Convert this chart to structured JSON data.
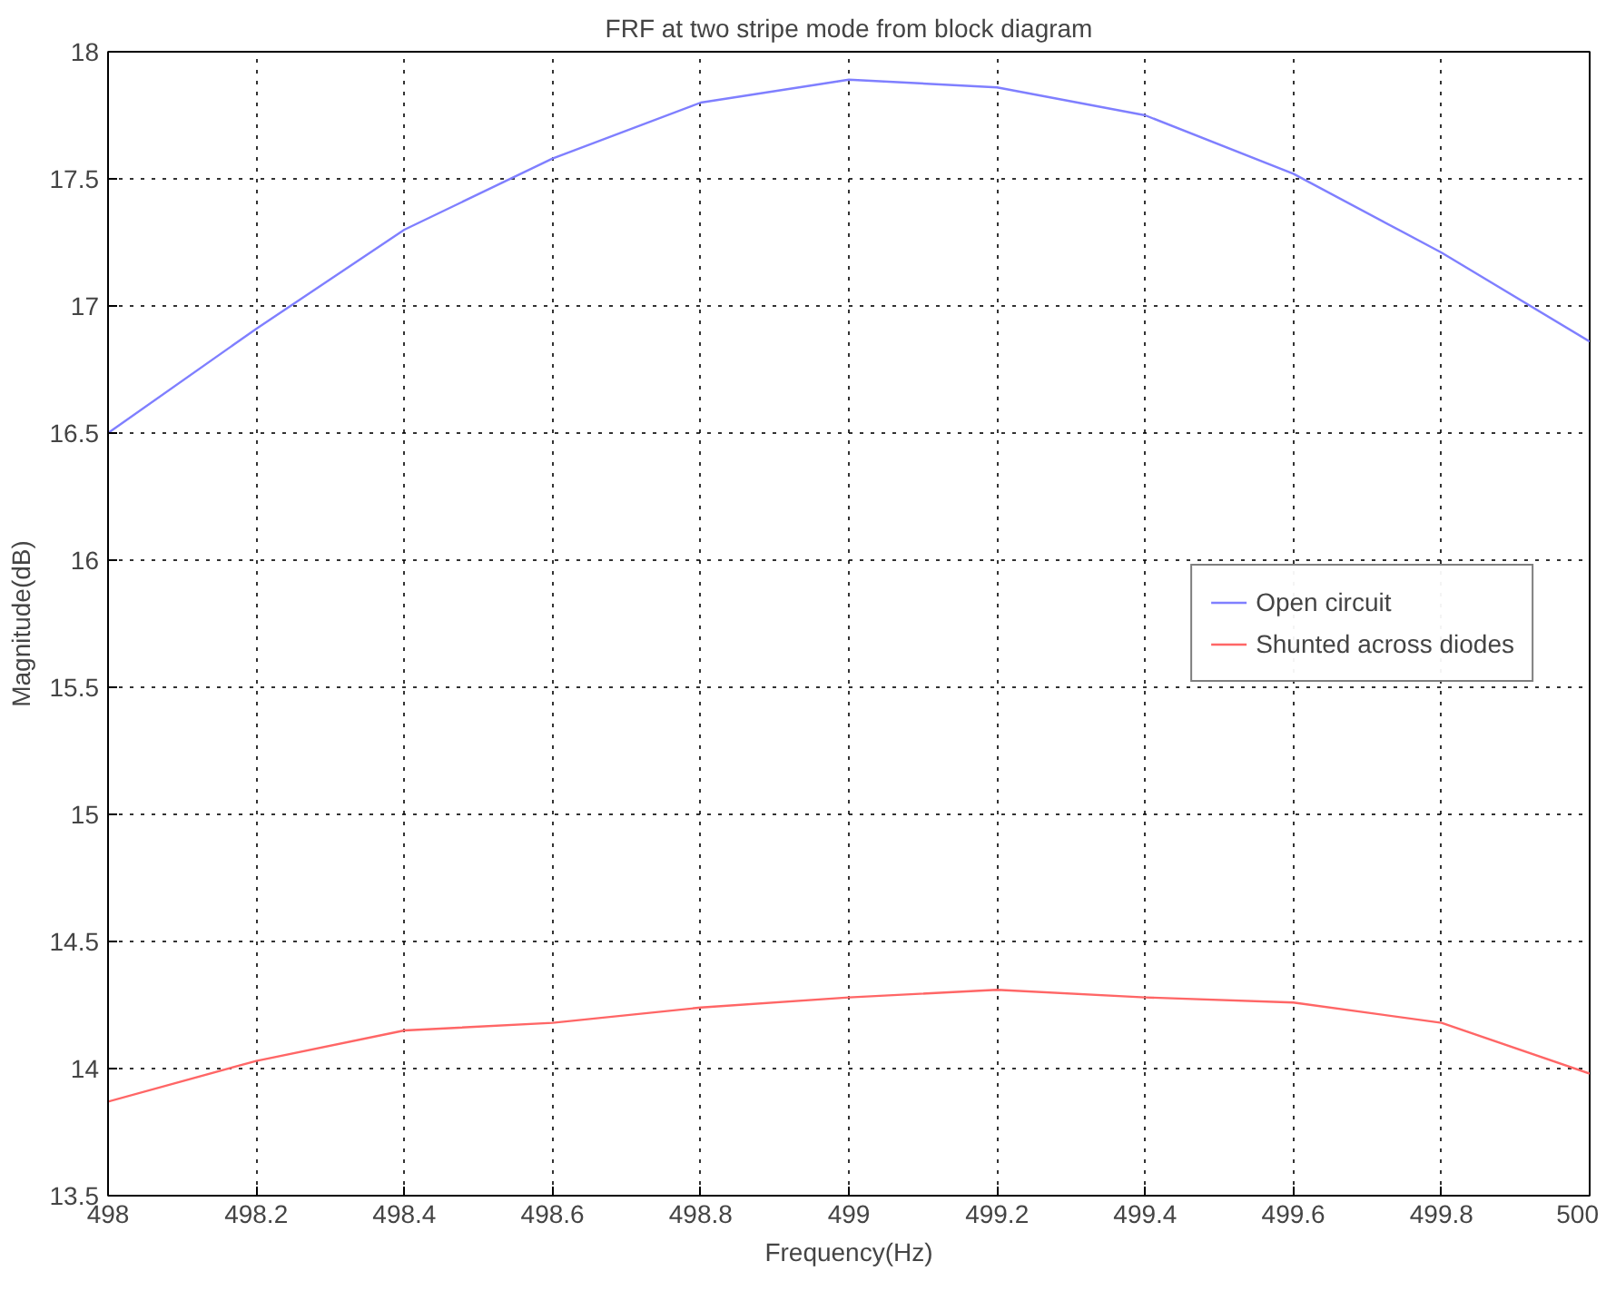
{
  "chart_data": {
    "type": "line",
    "title": "FRF at two stripe mode from block diagram",
    "xlabel": "Frequency(Hz)",
    "ylabel": "Magnitude(dB)",
    "x": [
      498,
      498.2,
      498.4,
      498.6,
      498.8,
      499,
      499.2,
      499.4,
      499.6,
      499.8,
      500
    ],
    "series": [
      {
        "name": "Open circuit",
        "color": "#7f7fff",
        "values": [
          16.5,
          16.91,
          17.3,
          17.58,
          17.8,
          17.89,
          17.86,
          17.75,
          17.52,
          17.21,
          16.86
        ]
      },
      {
        "name": "Shunted across diodes",
        "color": "#ff6666",
        "values": [
          13.87,
          14.03,
          14.15,
          14.18,
          14.24,
          14.28,
          14.31,
          14.28,
          14.26,
          14.18,
          13.98
        ]
      }
    ],
    "xlim": [
      498,
      500
    ],
    "ylim": [
      13.5,
      18
    ],
    "xticks": [
      498,
      498.2,
      498.4,
      498.6,
      498.8,
      499,
      499.2,
      499.4,
      499.6,
      499.8,
      500
    ],
    "yticks": [
      13.5,
      14,
      14.5,
      15,
      15.5,
      16,
      16.5,
      17,
      17.5,
      18
    ],
    "grid": true,
    "legend": "right",
    "line_style": "solid"
  }
}
